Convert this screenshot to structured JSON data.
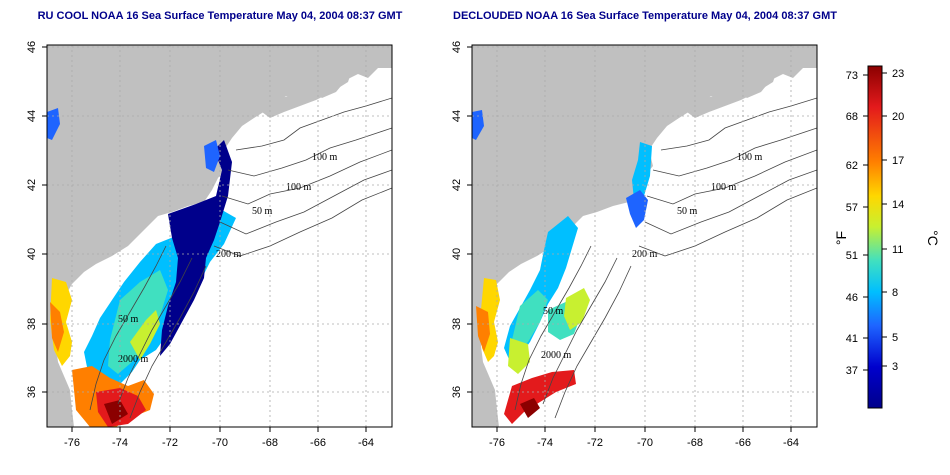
{
  "panels": [
    {
      "title": "RU COOL NOAA 16 Sea Surface Temperature May 04, 2004 08:37 GMT",
      "contour_labels": [
        "100 m",
        "100 m",
        "50 m",
        "200 m",
        "50 m",
        "2000 m"
      ]
    },
    {
      "title": "DECLOUDED NOAA 16 Sea Surface Temperature May 04, 2004 08:37 GMT",
      "contour_labels": [
        "100 m",
        "100 m",
        "50 m",
        "200 m",
        "50 m",
        "2000 m"
      ]
    }
  ],
  "axes": {
    "x_ticks": [
      "-76",
      "-74",
      "-72",
      "-70",
      "-68",
      "-66",
      "-64"
    ],
    "y_ticks": [
      "36",
      "38",
      "40",
      "42",
      "44",
      "46"
    ]
  },
  "colorbar": {
    "fahrenheit_label": "°F",
    "celsius_label": "°C",
    "fahrenheit_ticks": [
      "73",
      "68",
      "62",
      "57",
      "51",
      "46",
      "41",
      "37"
    ],
    "celsius_ticks": [
      "23",
      "20",
      "17",
      "14",
      "11",
      "8",
      "5",
      "3"
    ],
    "colors": [
      "#8b0000",
      "#e31a1c",
      "#ff7f00",
      "#ffd700",
      "#c8f030",
      "#40e0c0",
      "#00bfff",
      "#1e64ff",
      "#0000cd",
      "#00008b"
    ]
  },
  "colors": {
    "land": "#c0c0c0",
    "ocean": "#ffffff",
    "title": "#00008b"
  }
}
